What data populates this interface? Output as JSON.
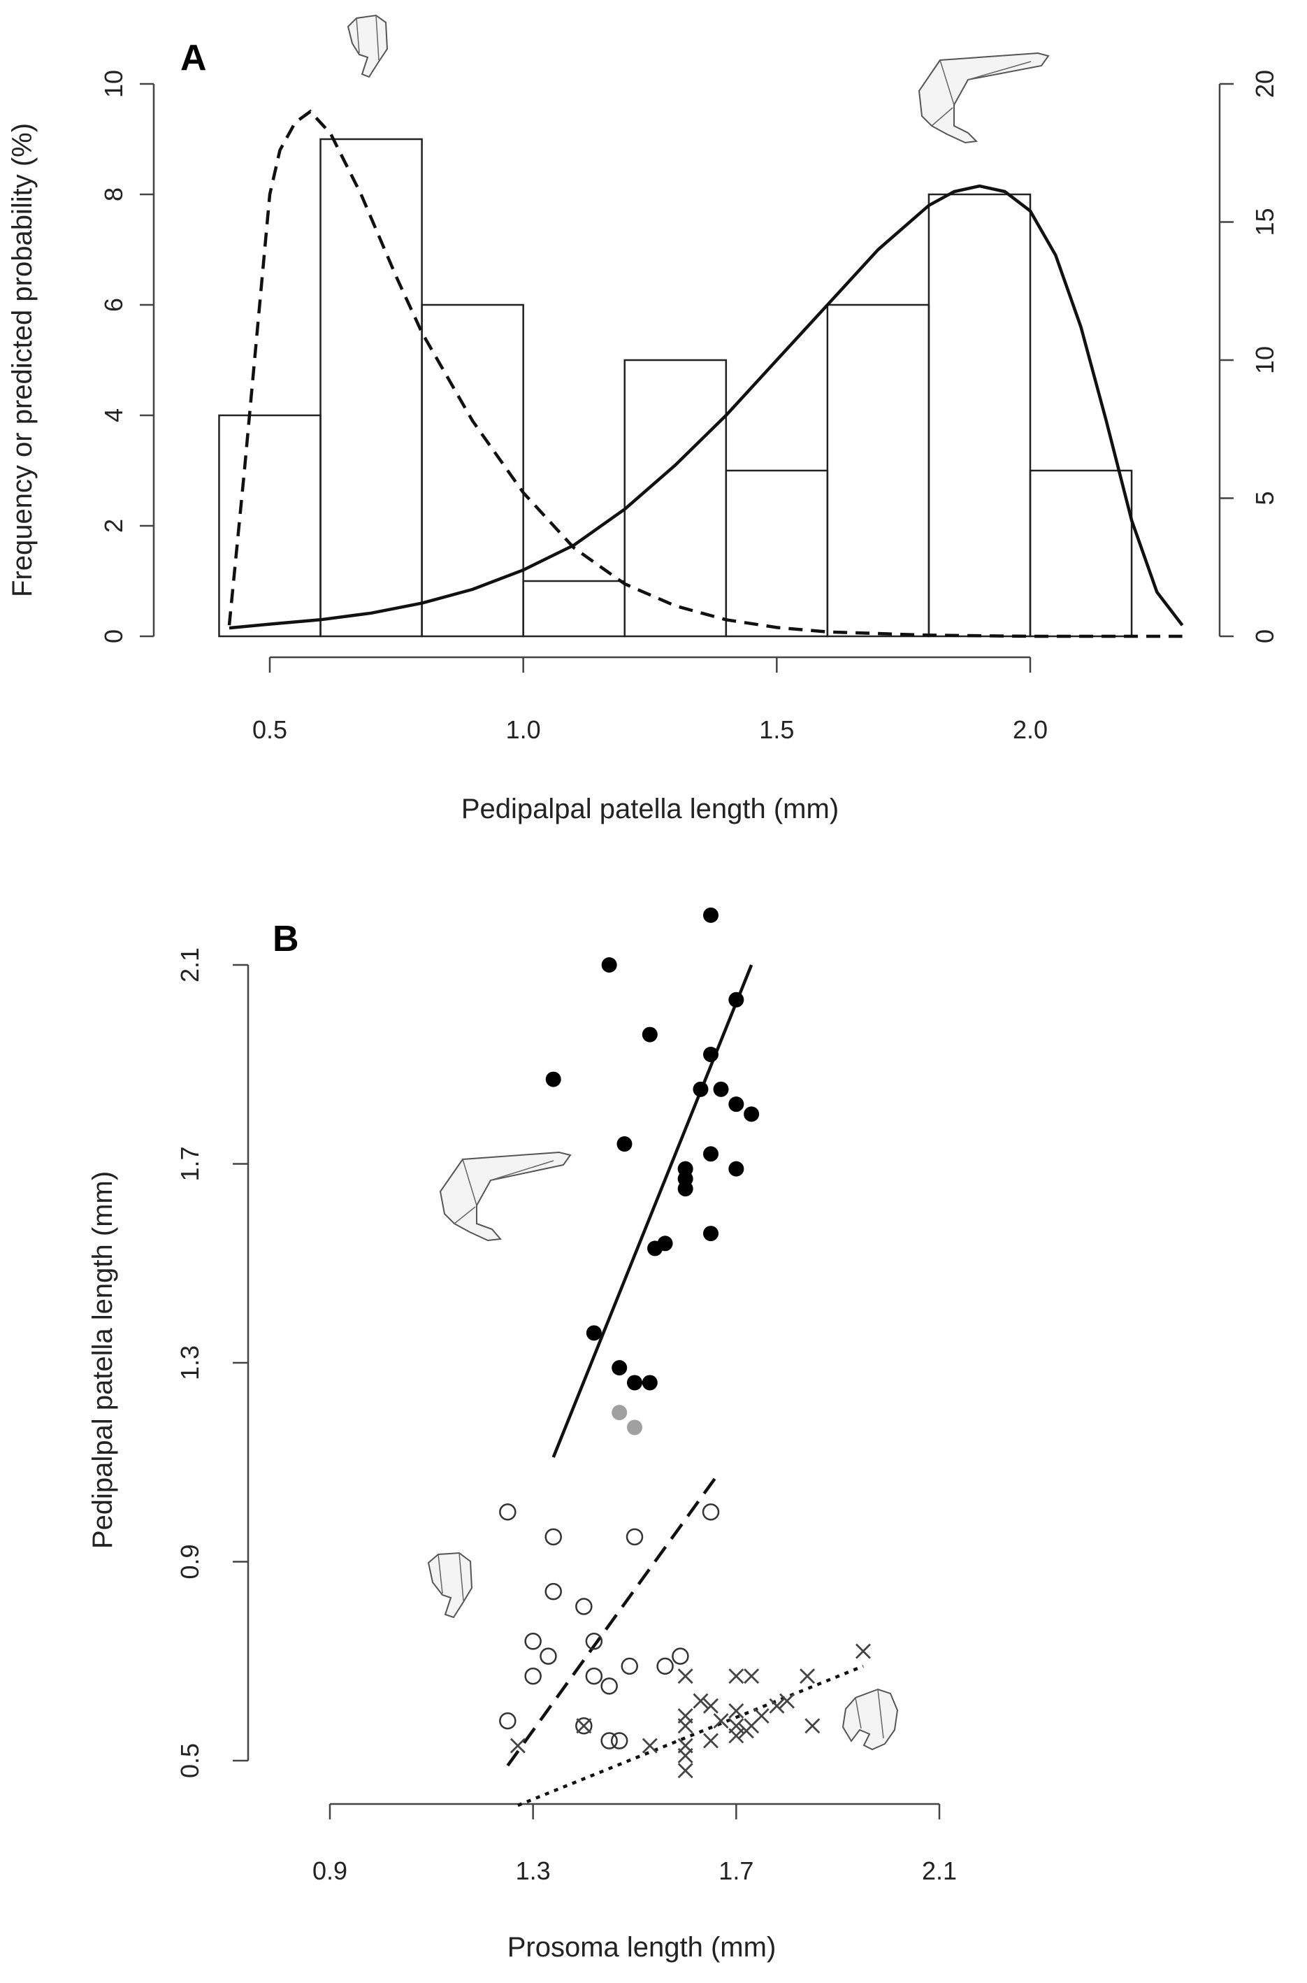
{
  "chart_data": [
    {
      "panel": "A",
      "type": "bar",
      "xlabel": "Pedipalpal patella length (mm)",
      "ylabel": "Frequency or predicted probability (%)",
      "xticks": [
        "0.5",
        "1.0",
        "1.5",
        "2.0"
      ],
      "yticks_left": [
        "0",
        "2",
        "4",
        "6",
        "8",
        "10"
      ],
      "yticks_right": [
        "0",
        "5",
        "10",
        "15",
        "20"
      ],
      "ylim_left": [
        0,
        10
      ],
      "ylim_right": [
        0,
        20
      ],
      "xlim": [
        0.4,
        2.3
      ],
      "bins": [
        {
          "from": 0.4,
          "to": 0.6,
          "value": 4
        },
        {
          "from": 0.6,
          "to": 0.8,
          "value": 9
        },
        {
          "from": 0.8,
          "to": 1.0,
          "value": 6
        },
        {
          "from": 1.0,
          "to": 1.2,
          "value": 1
        },
        {
          "from": 1.2,
          "to": 1.4,
          "value": 5
        },
        {
          "from": 1.4,
          "to": 1.6,
          "value": 3
        },
        {
          "from": 1.6,
          "to": 1.8,
          "value": 6
        },
        {
          "from": 1.8,
          "to": 2.0,
          "value": 8
        },
        {
          "from": 2.0,
          "to": 2.2,
          "value": 3
        }
      ],
      "series": [
        {
          "style": "dashed",
          "x": [
            0.42,
            0.45,
            0.5,
            0.52,
            0.55,
            0.58,
            0.62,
            0.68,
            0.75,
            0.8,
            0.9,
            1.0,
            1.1,
            1.2,
            1.3,
            1.4,
            1.5,
            1.6,
            1.8,
            2.0,
            2.3
          ],
          "y": [
            0.2,
            3.0,
            8.0,
            8.8,
            9.3,
            9.5,
            9.1,
            8.0,
            6.5,
            5.5,
            3.9,
            2.6,
            1.6,
            0.95,
            0.55,
            0.3,
            0.16,
            0.08,
            0.02,
            0.0,
            0.0
          ]
        },
        {
          "style": "solid",
          "x": [
            0.42,
            0.5,
            0.6,
            0.7,
            0.8,
            0.9,
            1.0,
            1.1,
            1.2,
            1.3,
            1.4,
            1.5,
            1.6,
            1.7,
            1.8,
            1.85,
            1.9,
            1.95,
            2.0,
            2.05,
            2.1,
            2.15,
            2.2,
            2.25,
            2.3
          ],
          "y": [
            0.15,
            0.22,
            0.3,
            0.42,
            0.6,
            0.85,
            1.2,
            1.65,
            2.3,
            3.1,
            4.0,
            5.0,
            6.0,
            7.0,
            7.8,
            8.05,
            8.15,
            8.05,
            7.7,
            6.9,
            5.6,
            3.9,
            2.1,
            0.8,
            0.2
          ]
        }
      ]
    },
    {
      "panel": "B",
      "type": "scatter",
      "xlabel": "Prosoma length (mm)",
      "ylabel": "Pedipalpal patella length (mm)",
      "xticks": [
        "0.9",
        "1.3",
        "1.7",
        "2.1"
      ],
      "yticks": [
        "0.5",
        "0.9",
        "1.3",
        "1.7",
        "2.1"
      ],
      "xlim": [
        0.9,
        2.1
      ],
      "ylim": [
        0.5,
        2.1
      ],
      "series": [
        {
          "marker": "filled",
          "points": [
            [
              1.65,
              2.2
            ],
            [
              1.45,
              2.1
            ],
            [
              1.7,
              2.03
            ],
            [
              1.53,
              1.96
            ],
            [
              1.65,
              1.92
            ],
            [
              1.34,
              1.87
            ],
            [
              1.63,
              1.85
            ],
            [
              1.67,
              1.85
            ],
            [
              1.7,
              1.82
            ],
            [
              1.73,
              1.8
            ],
            [
              1.48,
              1.74
            ],
            [
              1.65,
              1.72
            ],
            [
              1.7,
              1.69
            ],
            [
              1.6,
              1.69
            ],
            [
              1.6,
              1.67
            ],
            [
              1.6,
              1.65
            ],
            [
              1.65,
              1.56
            ],
            [
              1.56,
              1.54
            ],
            [
              1.54,
              1.53
            ],
            [
              1.42,
              1.36
            ],
            [
              1.47,
              1.29
            ],
            [
              1.5,
              1.26
            ],
            [
              1.53,
              1.26
            ]
          ]
        },
        {
          "marker": "grey",
          "points": [
            [
              1.47,
              1.2
            ],
            [
              1.5,
              1.17
            ]
          ]
        },
        {
          "marker": "open",
          "points": [
            [
              1.25,
              1.0
            ],
            [
              1.65,
              1.0
            ],
            [
              1.34,
              0.95
            ],
            [
              1.5,
              0.95
            ],
            [
              1.34,
              0.84
            ],
            [
              1.4,
              0.81
            ],
            [
              1.3,
              0.74
            ],
            [
              1.42,
              0.74
            ],
            [
              1.33,
              0.71
            ],
            [
              1.59,
              0.71
            ],
            [
              1.49,
              0.69
            ],
            [
              1.56,
              0.69
            ],
            [
              1.3,
              0.67
            ],
            [
              1.42,
              0.67
            ],
            [
              1.45,
              0.65
            ],
            [
              1.25,
              0.58
            ],
            [
              1.4,
              0.57
            ],
            [
              1.45,
              0.54
            ],
            [
              1.47,
              0.54
            ]
          ]
        },
        {
          "marker": "cross",
          "points": [
            [
              1.6,
              0.67
            ],
            [
              1.7,
              0.67
            ],
            [
              1.73,
              0.67
            ],
            [
              1.84,
              0.67
            ],
            [
              1.95,
              0.72
            ],
            [
              1.65,
              0.61
            ],
            [
              1.7,
              0.6
            ],
            [
              1.63,
              0.62
            ],
            [
              1.6,
              0.59
            ],
            [
              1.67,
              0.58
            ],
            [
              1.7,
              0.57
            ],
            [
              1.73,
              0.57
            ],
            [
              1.75,
              0.59
            ],
            [
              1.78,
              0.61
            ],
            [
              1.8,
              0.62
            ],
            [
              1.6,
              0.57
            ],
            [
              1.65,
              0.54
            ],
            [
              1.7,
              0.55
            ],
            [
              1.6,
              0.53
            ],
            [
              1.72,
              0.56
            ],
            [
              1.85,
              0.57
            ],
            [
              1.53,
              0.53
            ],
            [
              1.6,
              0.51
            ],
            [
              1.6,
              0.48
            ],
            [
              1.27,
              0.53
            ],
            [
              1.4,
              0.57
            ]
          ]
        }
      ],
      "fits": [
        {
          "style": "solid",
          "from": [
            1.34,
            1.11
          ],
          "to": [
            1.73,
            2.1
          ]
        },
        {
          "style": "dashed",
          "from": [
            1.25,
            0.49
          ],
          "to": [
            1.66,
            1.07
          ]
        },
        {
          "style": "dotted",
          "from": [
            1.27,
            0.41
          ],
          "to": [
            1.95,
            0.69
          ]
        }
      ]
    }
  ],
  "panels": {
    "a": {
      "label": "A"
    },
    "b": {
      "label": "B"
    }
  },
  "icons": [
    "palp-icon-small-open",
    "palp-icon-large-elongated",
    "palp-icon-small-curled"
  ]
}
